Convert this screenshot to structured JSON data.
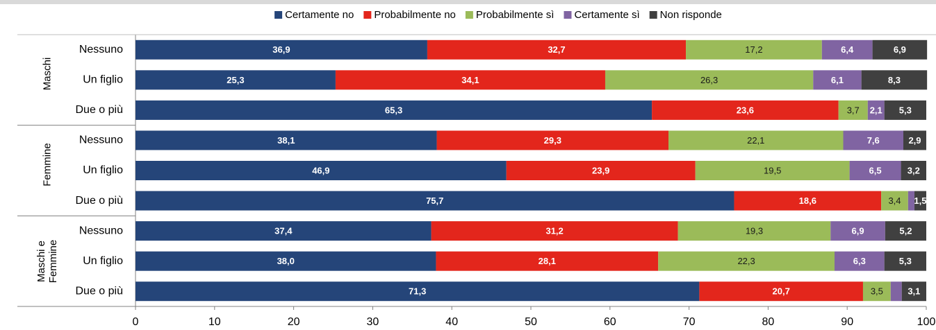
{
  "chart_data": {
    "type": "stacked-barh",
    "groups": [
      "Maschi",
      "Femmine",
      "Maschi e Femmine"
    ],
    "group_size": 3,
    "categories": [
      "Nessuno",
      "Un figlio",
      "Due o più",
      "Nessuno",
      "Un figlio",
      "Due o più",
      "Nessuno",
      "Un figlio",
      "Due o più"
    ],
    "series": [
      {
        "name": "Certamente no",
        "color": "#254579",
        "label_color": "#ffffff",
        "values": [
          36.9,
          25.3,
          65.3,
          38.1,
          46.9,
          75.7,
          37.4,
          38.0,
          71.3
        ],
        "value_labels": [
          "36,9",
          "25,3",
          "65,3",
          "38,1",
          "46,9",
          "75,7",
          "37,4",
          "38,0",
          "71,3"
        ]
      },
      {
        "name": "Probabilmente no",
        "color": "#e3261c",
        "label_color": "#ffffff",
        "values": [
          32.7,
          34.1,
          23.6,
          29.3,
          23.9,
          18.6,
          31.2,
          28.1,
          20.7
        ],
        "value_labels": [
          "32,7",
          "34,1",
          "23,6",
          "29,3",
          "23,9",
          "18,6",
          "31,2",
          "28,1",
          "20,7"
        ]
      },
      {
        "name": "Probabilmente sì",
        "color": "#9bbb59",
        "label_color": "#1a1a1a",
        "values": [
          17.2,
          26.3,
          3.7,
          22.1,
          19.5,
          3.4,
          19.3,
          22.3,
          3.5
        ],
        "value_labels": [
          "17,2",
          "26,3",
          "3,7",
          "22,1",
          "19,5",
          "3,4",
          "19,3",
          "22,3",
          "3,5"
        ]
      },
      {
        "name": "Certamente sì",
        "color": "#8064a2",
        "label_color": "#ffffff",
        "values": [
          6.4,
          6.1,
          2.1,
          7.6,
          6.5,
          0.8,
          6.9,
          6.3,
          1.4
        ],
        "value_labels": [
          "6,4",
          "6,1",
          "2,1",
          "7,6",
          "6,5",
          null,
          "6,9",
          "6,3",
          null
        ]
      },
      {
        "name": "Non risponde",
        "color": "#404040",
        "label_color": "#ffffff",
        "values": [
          6.9,
          8.3,
          5.3,
          2.9,
          3.2,
          1.5,
          5.2,
          5.3,
          3.1
        ],
        "value_labels": [
          "6,9",
          "8,3",
          "5,3",
          "2,9",
          "3,2",
          "1,5",
          "5,2",
          "5,3",
          "3,1"
        ]
      }
    ],
    "xlim": [
      0,
      100
    ],
    "xticks": [
      0,
      10,
      20,
      30,
      40,
      50,
      60,
      70,
      80,
      90,
      100
    ],
    "legend": "top"
  }
}
